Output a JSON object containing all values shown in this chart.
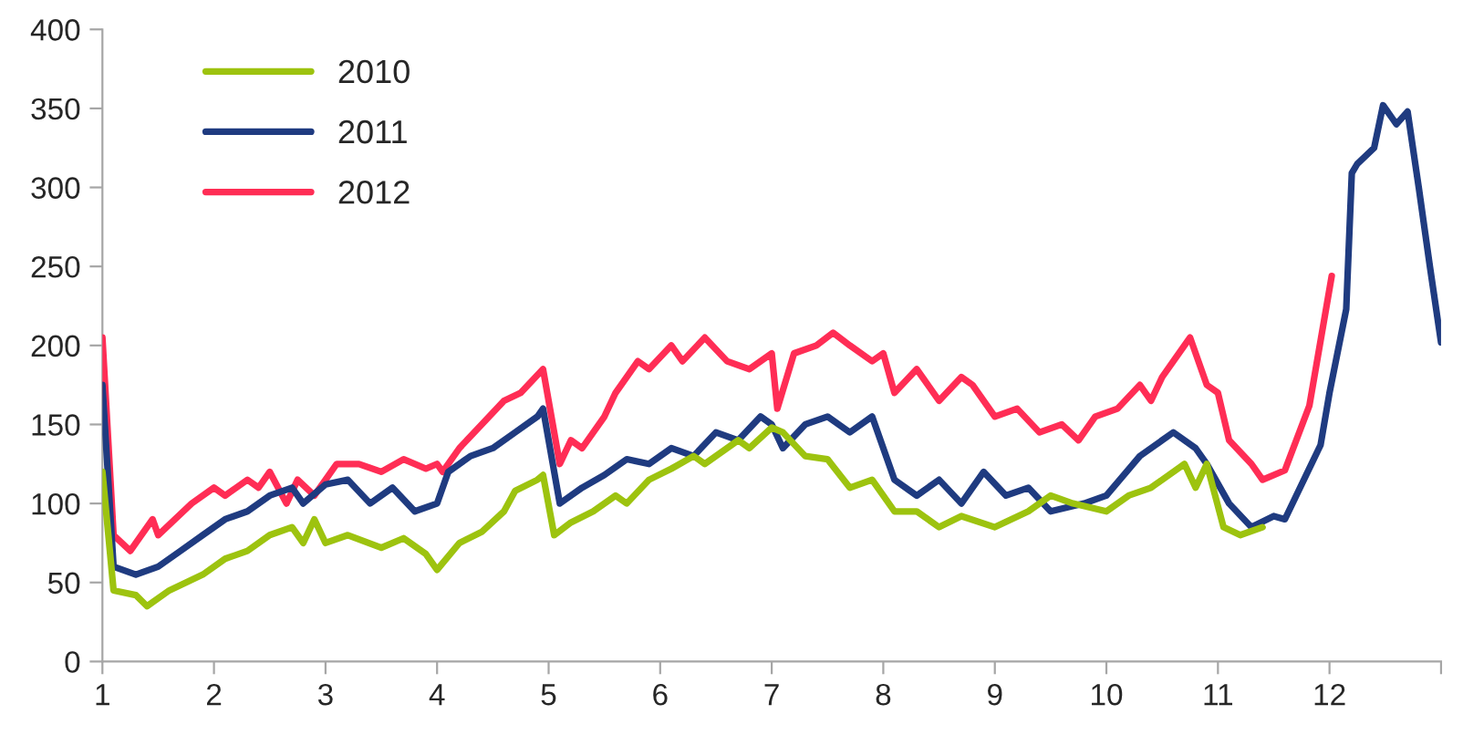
{
  "chart_data": {
    "type": "line",
    "xlim": [
      1,
      13
    ],
    "ylim": [
      0,
      400
    ],
    "xticks": [
      1,
      2,
      3,
      4,
      5,
      6,
      7,
      8,
      9,
      10,
      11,
      12,
      {
        "value": 13,
        "label": null
      }
    ],
    "yticks": [
      0,
      50,
      100,
      150,
      200,
      250,
      300,
      350,
      400
    ],
    "grid": false,
    "legend": "top left",
    "marker": "none",
    "line_style": "solid",
    "series": [
      {
        "name": "2010",
        "color": "#9dc30f",
        "x": [
          1,
          1.1,
          1.3,
          1.4,
          1.6,
          1.9,
          2.1,
          2.3,
          2.5,
          2.7,
          2.8,
          2.9,
          3.0,
          3.2,
          3.5,
          3.7,
          3.9,
          4.0,
          4.2,
          4.4,
          4.6,
          4.7,
          4.9,
          4.95,
          5.05,
          5.2,
          5.4,
          5.6,
          5.7,
          5.9,
          6.1,
          6.3,
          6.4,
          6.7,
          6.8,
          7.0,
          7.1,
          7.3,
          7.5,
          7.7,
          7.9,
          8.1,
          8.3,
          8.5,
          8.7,
          9.0,
          9.3,
          9.5,
          9.7,
          10.0,
          10.2,
          10.4,
          10.7,
          10.8,
          10.9,
          11.05,
          11.2,
          11.4
        ],
        "values": [
          120,
          45,
          42,
          35,
          45,
          55,
          65,
          70,
          80,
          85,
          75,
          90,
          75,
          80,
          72,
          78,
          68,
          58,
          75,
          82,
          95,
          108,
          115,
          118,
          80,
          88,
          95,
          105,
          100,
          115,
          122,
          130,
          125,
          140,
          135,
          148,
          145,
          130,
          128,
          110,
          115,
          95,
          95,
          85,
          92,
          85,
          95,
          105,
          100,
          95,
          105,
          110,
          125,
          110,
          125,
          85,
          80,
          85
        ]
      },
      {
        "name": "2011",
        "color": "#1f3b80",
        "x": [
          1,
          1.1,
          1.3,
          1.5,
          1.7,
          1.9,
          2.1,
          2.3,
          2.5,
          2.7,
          2.8,
          3.0,
          3.2,
          3.4,
          3.6,
          3.8,
          4.0,
          4.1,
          4.3,
          4.5,
          4.7,
          4.9,
          4.95,
          5.1,
          5.3,
          5.5,
          5.7,
          5.9,
          6.1,
          6.3,
          6.5,
          6.7,
          6.9,
          7.0,
          7.1,
          7.3,
          7.5,
          7.7,
          7.9,
          8.1,
          8.3,
          8.5,
          8.7,
          8.9,
          9.1,
          9.3,
          9.5,
          9.8,
          10.0,
          10.3,
          10.5,
          10.6,
          10.8,
          10.9,
          11.1,
          11.3,
          11.5,
          11.6,
          11.92,
          12.0,
          12.15,
          12.2,
          12.25,
          12.4,
          12.48,
          12.6,
          12.7,
          12.8,
          12.9,
          13.0
        ],
        "values": [
          175,
          60,
          55,
          60,
          70,
          80,
          90,
          95,
          105,
          110,
          100,
          112,
          115,
          100,
          110,
          95,
          100,
          120,
          130,
          135,
          145,
          155,
          160,
          100,
          110,
          118,
          128,
          125,
          135,
          130,
          145,
          140,
          155,
          150,
          135,
          150,
          155,
          145,
          155,
          115,
          105,
          115,
          100,
          120,
          105,
          110,
          95,
          100,
          105,
          130,
          140,
          145,
          135,
          125,
          100,
          85,
          92,
          90,
          137,
          170,
          223,
          309,
          315,
          325,
          352,
          340,
          348,
          300,
          250,
          202
        ]
      },
      {
        "name": "2012",
        "color": "#ff2d55",
        "x": [
          1,
          1.1,
          1.25,
          1.3,
          1.45,
          1.5,
          1.8,
          2.0,
          2.1,
          2.3,
          2.4,
          2.5,
          2.65,
          2.75,
          2.9,
          3.0,
          3.1,
          3.3,
          3.5,
          3.7,
          3.9,
          4.0,
          4.05,
          4.2,
          4.4,
          4.6,
          4.75,
          4.95,
          5.1,
          5.2,
          5.3,
          5.5,
          5.6,
          5.8,
          5.9,
          6.1,
          6.2,
          6.4,
          6.6,
          6.8,
          7.0,
          7.05,
          7.2,
          7.4,
          7.55,
          7.7,
          7.9,
          8.0,
          8.1,
          8.3,
          8.5,
          8.7,
          8.8,
          9.0,
          9.2,
          9.4,
          9.6,
          9.75,
          9.9,
          10.1,
          10.3,
          10.4,
          10.5,
          10.6,
          10.75,
          10.9,
          11.0,
          11.1,
          11.3,
          11.4,
          11.6,
          11.82,
          12.02
        ],
        "values": [
          205,
          80,
          70,
          75,
          90,
          80,
          100,
          110,
          105,
          115,
          110,
          120,
          100,
          115,
          105,
          115,
          125,
          125,
          120,
          128,
          122,
          125,
          120,
          135,
          150,
          165,
          170,
          185,
          125,
          140,
          135,
          155,
          170,
          190,
          185,
          200,
          190,
          205,
          190,
          185,
          195,
          160,
          195,
          200,
          208,
          200,
          190,
          195,
          170,
          185,
          165,
          180,
          175,
          155,
          160,
          145,
          150,
          140,
          155,
          160,
          175,
          165,
          180,
          190,
          205,
          175,
          170,
          140,
          125,
          115,
          121,
          162,
          244
        ]
      }
    ]
  }
}
